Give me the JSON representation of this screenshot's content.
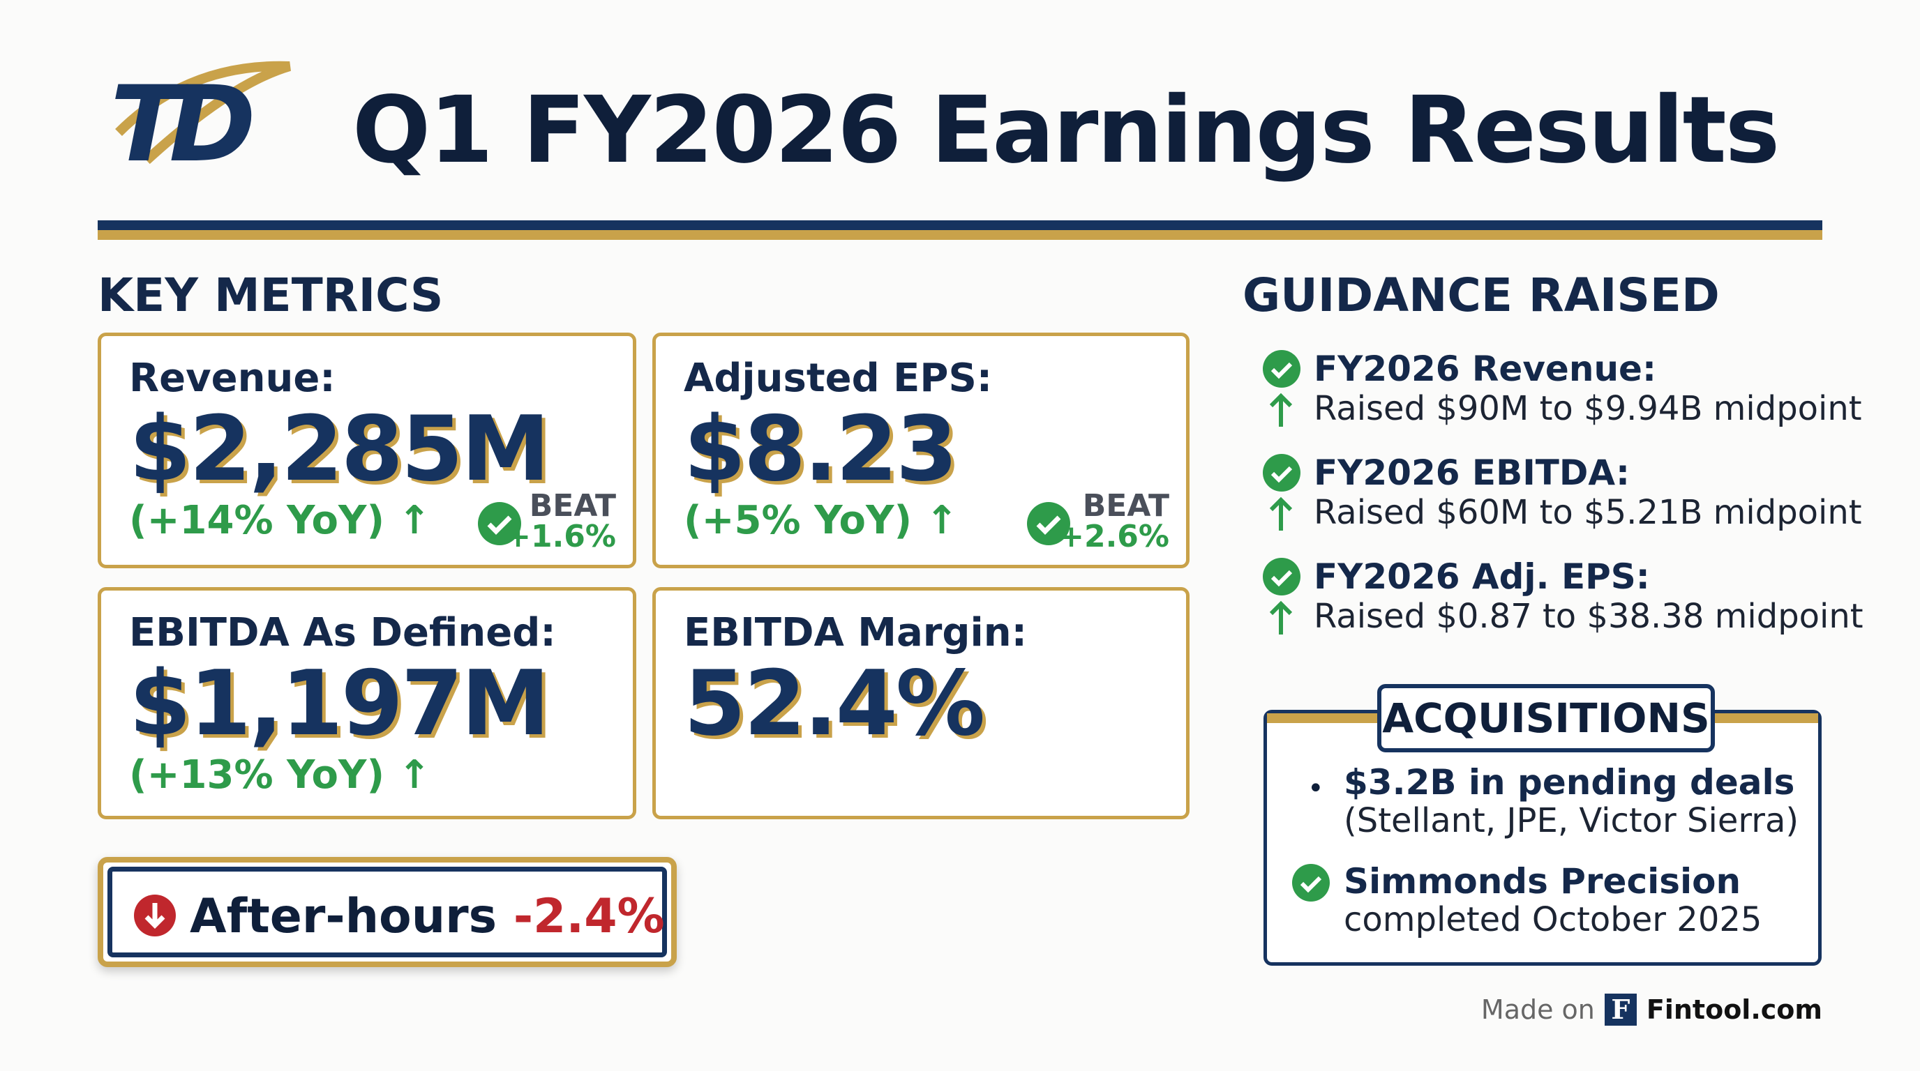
{
  "header": {
    "logo": "TD",
    "title": "Q1 FY2026 Earnings Results"
  },
  "key_metrics": {
    "heading": "KEY METRICS",
    "cards": [
      {
        "label": "Revenue:",
        "value": "$2,285M",
        "change": "(+14% YoY)",
        "beat_label": "BEAT",
        "beat_value": "+1.6%"
      },
      {
        "label": "Adjusted EPS:",
        "value": "$8.23",
        "change": "(+5% YoY)",
        "beat_label": "BEAT",
        "beat_value": "+2.6%"
      },
      {
        "label": "EBITDA As Defined:",
        "value": "$1,197M",
        "change": "(+13% YoY)"
      },
      {
        "label": "EBITDA Margin:",
        "value": "52.4%"
      }
    ]
  },
  "after_hours": {
    "label": "After-hours",
    "value": "-2.4%"
  },
  "guidance": {
    "heading": "GUIDANCE RAISED",
    "items": [
      {
        "title": "FY2026 Revenue:",
        "detail": "Raised $90M to $9.94B midpoint"
      },
      {
        "title": "FY2026 EBITDA:",
        "detail": "Raised $60M to $5.21B midpoint"
      },
      {
        "title": "FY2026 Adj. EPS:",
        "detail": "Raised $0.87 to $38.38 midpoint"
      }
    ]
  },
  "acquisitions": {
    "heading": "ACQUISITIONS",
    "items": [
      {
        "title": "$3.2B in pending deals",
        "detail": "(Stellant, JPE, Victor Sierra)"
      },
      {
        "title": "Simmonds Precision",
        "detail": "completed October 2025"
      }
    ]
  },
  "footer": {
    "made_on": "Made on",
    "logo_letter": "F",
    "brand": "Fintool.com"
  }
}
